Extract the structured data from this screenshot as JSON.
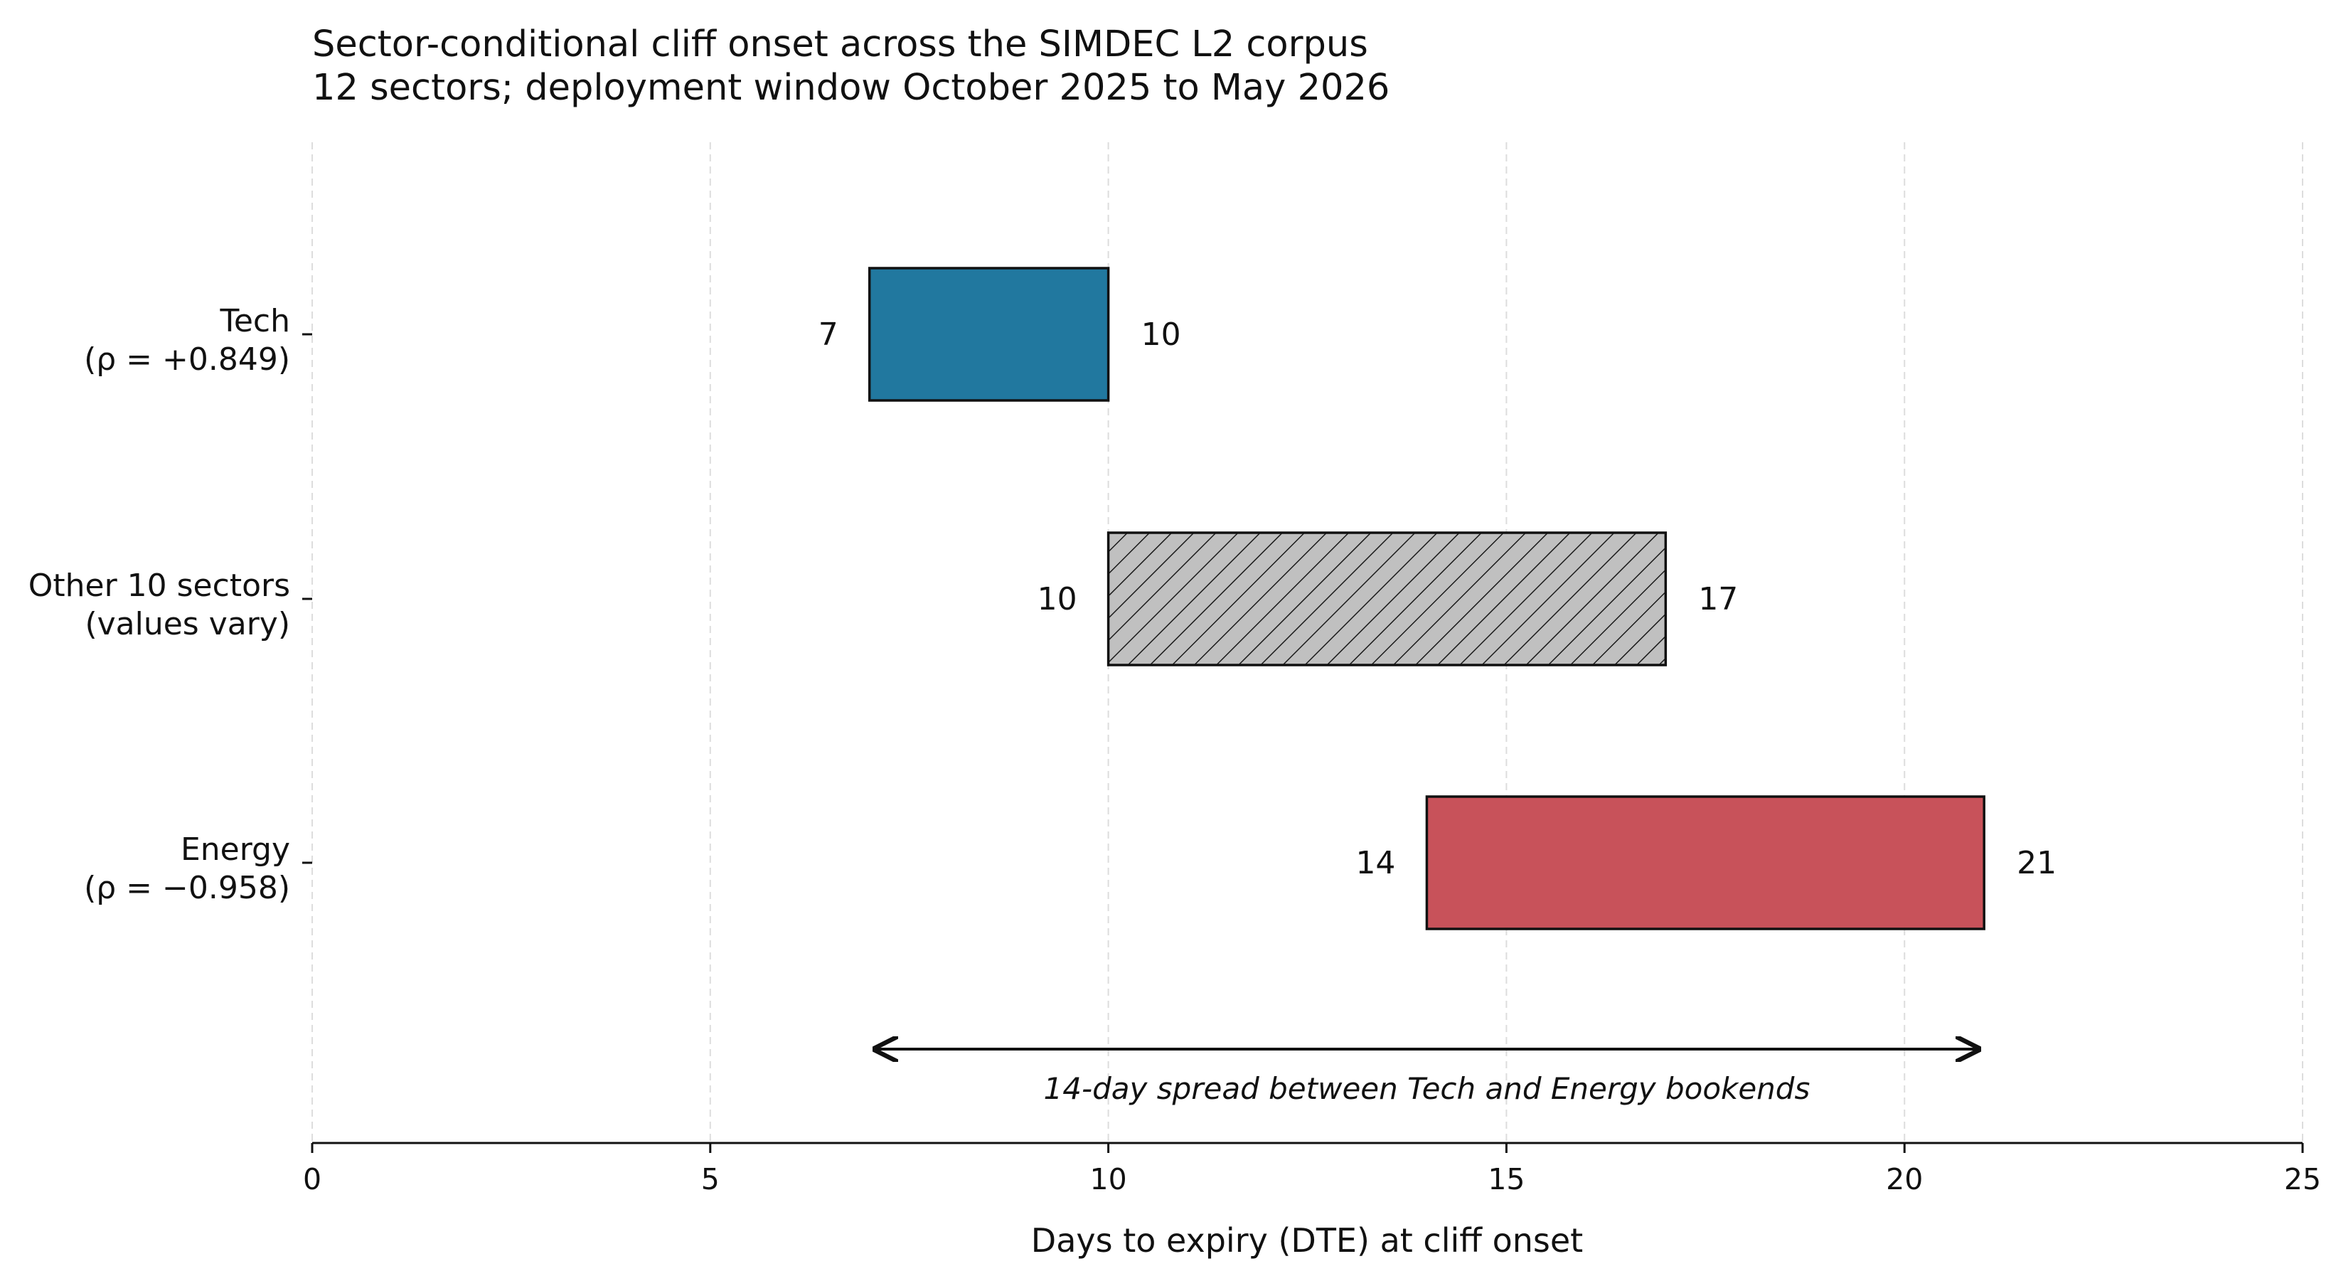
{
  "chart_data": {
    "type": "bar",
    "orientation": "horizontal-range",
    "title": "Sector-conditional cliff onset across the SIMDEC L2 corpus",
    "subtitle": "12 sectors; deployment window October 2025 to May 2026",
    "xlabel": "Days to expiry (DTE) at cliff onset",
    "ylabel": "",
    "xlim": [
      0,
      25
    ],
    "xticks": [
      0,
      5,
      10,
      15,
      20,
      25
    ],
    "grid": "vertical dashed",
    "legend": "none",
    "categories": [
      {
        "line1": "Tech",
        "line2": "(ρ = +0.849)"
      },
      {
        "line1": "Other 10 sectors",
        "line2": "(values vary)"
      },
      {
        "line1": "Energy",
        "line2": "(ρ = −0.958)"
      }
    ],
    "ranges": [
      {
        "start": 7,
        "end": 10,
        "start_label": "7",
        "end_label": "10",
        "color": "#21789f",
        "hatch": false
      },
      {
        "start": 10,
        "end": 17,
        "start_label": "10",
        "end_label": "17",
        "color": "#c0c0c0",
        "hatch": true
      },
      {
        "start": 14,
        "end": 21,
        "start_label": "14",
        "end_label": "21",
        "color": "#c8525a",
        "hatch": false
      }
    ],
    "annotation": {
      "text": "14-day spread between Tech and Energy bookends",
      "from": 7,
      "to": 21
    }
  }
}
